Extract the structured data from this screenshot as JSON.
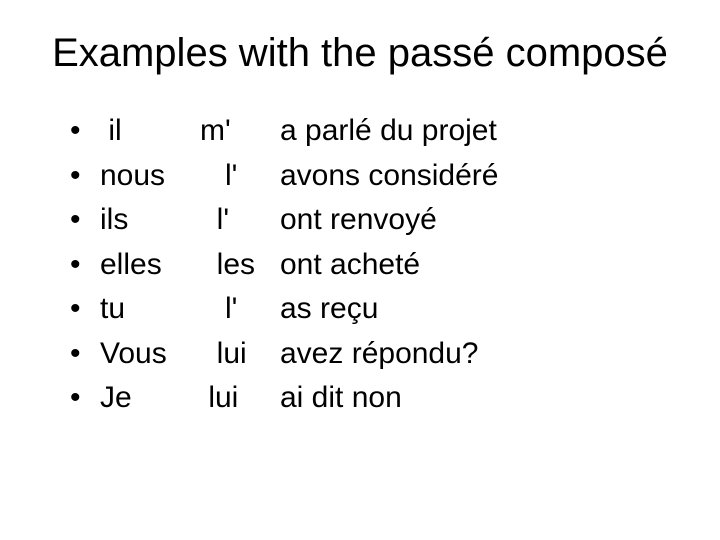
{
  "title": "Examples with the passé composé",
  "items": [
    {
      "subject": " il",
      "pronoun": "m'",
      "verb": "a parlé du projet"
    },
    {
      "subject": "nous",
      "pronoun": "   l'",
      "verb": "avons considéré"
    },
    {
      "subject": "ils",
      "pronoun": "  l'",
      "verb": "ont renvoyé"
    },
    {
      "subject": "elles",
      "pronoun": "  les",
      "verb": "ont acheté"
    },
    {
      "subject": "tu",
      "pronoun": "   l'",
      "verb": "as reçu"
    },
    {
      "subject": "Vous",
      "pronoun": "  lui",
      "verb": "avez répondu?"
    },
    {
      "subject": "Je",
      "pronoun": " lui",
      "verb": "ai dit non"
    }
  ],
  "style": {
    "background_color": "#ffffff",
    "text_color": "#000000",
    "title_fontsize": 40,
    "body_fontsize": 30,
    "font_family": "Arial"
  }
}
